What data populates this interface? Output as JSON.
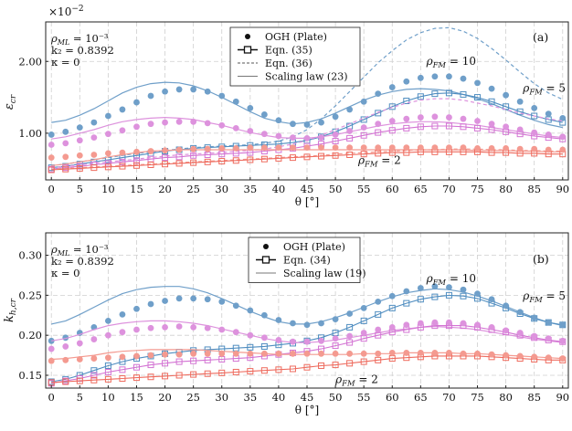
{
  "chart_data": [
    {
      "type": "scatter",
      "panel_label": "(a)",
      "exponent_label": "×10",
      "exponent_power": "−2",
      "ylabel": "ε",
      "ylabel_sub": "cr",
      "xlabel": "θ [°]",
      "xlim": [
        -1,
        91
      ],
      "ylim": [
        0.35,
        2.55
      ],
      "x_ticks": [
        0,
        5,
        10,
        15,
        20,
        25,
        30,
        35,
        40,
        45,
        50,
        55,
        60,
        65,
        70,
        75,
        80,
        85,
        90
      ],
      "y_ticks": [
        {
          "value": 1.0,
          "label": "1.00"
        },
        {
          "value": 2.0,
          "label": "2.00"
        }
      ],
      "params": [
        "ρML = 10⁻³",
        "k₂ = 0.8392",
        "κ = 0"
      ],
      "legend": [
        {
          "kind": "dot",
          "label": "OGH (Plate)"
        },
        {
          "kind": "square-line",
          "label": "Eqn. (35)"
        },
        {
          "kind": "dashed",
          "label": "Eqn. (36)"
        },
        {
          "kind": "line",
          "label": "Scaling law (23)"
        }
      ],
      "annotations": [
        {
          "text": "ρFM = 10",
          "x": 66,
          "y": 1.95
        },
        {
          "text": "ρFM = 5",
          "x": 83,
          "y": 1.58
        },
        {
          "text": "ρFM = 2",
          "x": 54,
          "y": 0.57
        }
      ],
      "markers_x": [
        0,
        2.5,
        5,
        7.5,
        10,
        12.5,
        15,
        17.5,
        20,
        22.5,
        25,
        27.5,
        30,
        32.5,
        35,
        37.5,
        40,
        42.5,
        45,
        47.5,
        50,
        52.5,
        55,
        57.5,
        60,
        62.5,
        65,
        67.5,
        70,
        72.5,
        75,
        77.5,
        80,
        82.5,
        85,
        87.5,
        90
      ],
      "series": [
        {
          "name": "ρFM = 10",
          "color": "#4f8dc0",
          "light": "#6f9fc9",
          "ogh": [
            0.98,
            1.02,
            1.08,
            1.15,
            1.24,
            1.33,
            1.43,
            1.52,
            1.58,
            1.61,
            1.61,
            1.58,
            1.52,
            1.44,
            1.35,
            1.26,
            1.18,
            1.13,
            1.12,
            1.15,
            1.23,
            1.33,
            1.44,
            1.55,
            1.64,
            1.72,
            1.77,
            1.79,
            1.79,
            1.76,
            1.7,
            1.62,
            1.53,
            1.44,
            1.35,
            1.27,
            1.21
          ],
          "eqn": [
            0.52,
            0.54,
            0.57,
            0.6,
            0.63,
            0.66,
            0.69,
            0.72,
            0.75,
            0.77,
            0.79,
            0.8,
            0.81,
            0.82,
            0.83,
            0.84,
            0.85,
            0.87,
            0.9,
            0.95,
            1.02,
            1.1,
            1.19,
            1.28,
            1.37,
            1.45,
            1.51,
            1.55,
            1.56,
            1.54,
            1.5,
            1.44,
            1.37,
            1.3,
            1.24,
            1.19,
            1.15
          ],
          "eqn36": [
            0.55,
            0.57,
            0.6,
            0.63,
            0.66,
            0.69,
            0.72,
            0.74,
            0.76,
            0.78,
            0.8,
            0.81,
            0.82,
            0.83,
            0.84,
            0.86,
            0.89,
            0.95,
            1.05,
            1.2,
            1.38,
            1.58,
            1.78,
            1.98,
            2.15,
            2.3,
            2.4,
            2.46,
            2.47,
            2.42,
            2.32,
            2.18,
            2.02,
            1.85,
            1.69,
            1.56,
            1.47
          ],
          "scaling": [
            1.15,
            1.18,
            1.25,
            1.34,
            1.45,
            1.56,
            1.64,
            1.69,
            1.71,
            1.7,
            1.66,
            1.59,
            1.5,
            1.4,
            1.3,
            1.21,
            1.16,
            1.13,
            1.15,
            1.2,
            1.28,
            1.37,
            1.46,
            1.53,
            1.58,
            1.61,
            1.62,
            1.61,
            1.59,
            1.54,
            1.48,
            1.41,
            1.33,
            1.25,
            1.18,
            1.12,
            1.08
          ]
        },
        {
          "name": "ρFM = 5",
          "color": "#d373d3",
          "light": "#dd92dd",
          "ogh": [
            0.84,
            0.86,
            0.9,
            0.94,
            0.99,
            1.04,
            1.09,
            1.13,
            1.15,
            1.16,
            1.16,
            1.14,
            1.11,
            1.07,
            1.03,
            0.99,
            0.96,
            0.94,
            0.93,
            0.94,
            0.98,
            1.03,
            1.08,
            1.13,
            1.17,
            1.2,
            1.22,
            1.23,
            1.22,
            1.2,
            1.17,
            1.13,
            1.09,
            1.05,
            1.01,
            0.98,
            0.95
          ],
          "eqn": [
            0.5,
            0.52,
            0.54,
            0.56,
            0.58,
            0.6,
            0.62,
            0.64,
            0.66,
            0.67,
            0.69,
            0.7,
            0.71,
            0.72,
            0.73,
            0.75,
            0.77,
            0.79,
            0.82,
            0.85,
            0.89,
            0.93,
            0.97,
            1.01,
            1.04,
            1.07,
            1.09,
            1.1,
            1.1,
            1.09,
            1.07,
            1.05,
            1.02,
            0.99,
            0.96,
            0.94,
            0.92
          ],
          "eqn36": [
            0.52,
            0.54,
            0.56,
            0.58,
            0.6,
            0.62,
            0.64,
            0.66,
            0.68,
            0.7,
            0.71,
            0.72,
            0.73,
            0.75,
            0.76,
            0.78,
            0.81,
            0.85,
            0.9,
            0.97,
            1.05,
            1.13,
            1.21,
            1.29,
            1.36,
            1.42,
            1.46,
            1.48,
            1.48,
            1.46,
            1.42,
            1.38,
            1.33,
            1.28,
            1.24,
            1.2,
            1.17
          ],
          "scaling": [
            0.92,
            0.95,
            1.0,
            1.05,
            1.11,
            1.16,
            1.19,
            1.21,
            1.22,
            1.21,
            1.19,
            1.15,
            1.11,
            1.06,
            1.01,
            0.97,
            0.94,
            0.93,
            0.93,
            0.95,
            0.98,
            1.02,
            1.06,
            1.1,
            1.13,
            1.15,
            1.16,
            1.16,
            1.15,
            1.13,
            1.11,
            1.08,
            1.05,
            1.02,
            0.99,
            0.96,
            0.94
          ]
        },
        {
          "name": "ρFM = 2",
          "color": "#ee6b5e",
          "light": "#f49a90",
          "ogh": [
            0.66,
            0.67,
            0.69,
            0.7,
            0.72,
            0.73,
            0.74,
            0.75,
            0.76,
            0.77,
            0.78,
            0.78,
            0.79,
            0.79,
            0.8,
            0.8,
            0.8,
            0.8,
            0.8,
            0.8,
            0.8,
            0.8,
            0.8,
            0.8,
            0.8,
            0.8,
            0.8,
            0.8,
            0.8,
            0.8,
            0.79,
            0.79,
            0.79,
            0.78,
            0.78,
            0.77,
            0.77
          ],
          "eqn": [
            0.49,
            0.5,
            0.51,
            0.52,
            0.53,
            0.54,
            0.55,
            0.56,
            0.57,
            0.58,
            0.59,
            0.6,
            0.61,
            0.62,
            0.63,
            0.64,
            0.65,
            0.66,
            0.67,
            0.68,
            0.69,
            0.7,
            0.71,
            0.72,
            0.73,
            0.73,
            0.74,
            0.74,
            0.74,
            0.74,
            0.74,
            0.73,
            0.73,
            0.72,
            0.72,
            0.71,
            0.71
          ],
          "eqn36": [
            0.5,
            0.51,
            0.52,
            0.53,
            0.54,
            0.55,
            0.56,
            0.57,
            0.58,
            0.59,
            0.6,
            0.61,
            0.62,
            0.63,
            0.64,
            0.65,
            0.66,
            0.67,
            0.68,
            0.69,
            0.71,
            0.72,
            0.73,
            0.74,
            0.75,
            0.76,
            0.77,
            0.77,
            0.78,
            0.78,
            0.78,
            0.77,
            0.77,
            0.76,
            0.76,
            0.75,
            0.75
          ],
          "scaling": [
            0.55,
            0.57,
            0.6,
            0.63,
            0.67,
            0.7,
            0.73,
            0.75,
            0.76,
            0.77,
            0.77,
            0.77,
            0.77,
            0.77,
            0.77,
            0.77,
            0.77,
            0.77,
            0.77,
            0.77,
            0.77,
            0.77,
            0.77,
            0.77,
            0.77,
            0.77,
            0.77,
            0.77,
            0.77,
            0.77,
            0.76,
            0.76,
            0.76,
            0.75,
            0.75,
            0.74,
            0.74
          ]
        }
      ]
    },
    {
      "type": "scatter",
      "panel_label": "(b)",
      "ylabel": "k",
      "ylabel_sub": "h,cr",
      "xlabel": "θ [°]",
      "xlim": [
        -1,
        91
      ],
      "ylim": [
        0.134,
        0.328
      ],
      "x_ticks": [
        0,
        5,
        10,
        15,
        20,
        25,
        30,
        35,
        40,
        45,
        50,
        55,
        60,
        65,
        70,
        75,
        80,
        85,
        90
      ],
      "y_ticks": [
        {
          "value": 0.15,
          "label": "0.15"
        },
        {
          "value": 0.2,
          "label": "0.20"
        },
        {
          "value": 0.25,
          "label": "0.25"
        },
        {
          "value": 0.3,
          "label": "0.30"
        }
      ],
      "params": [
        "ρML = 10⁻³",
        "k₂ = 0.8392",
        "κ = 0"
      ],
      "legend": [
        {
          "kind": "dot",
          "label": "OGH (Plate)"
        },
        {
          "kind": "square-line",
          "label": "Eqn. (34)"
        },
        {
          "kind": "line",
          "label": "Scaling law (19)"
        }
      ],
      "annotations": [
        {
          "text": "ρFM = 10",
          "x": 66,
          "y": 0.2665
        },
        {
          "text": "ρFM = 5",
          "x": 83,
          "y": 0.2445
        },
        {
          "text": "ρFM = 2",
          "x": 50,
          "y": 0.1405
        }
      ],
      "markers_x": [
        0,
        2.5,
        5,
        7.5,
        10,
        12.5,
        15,
        17.5,
        20,
        22.5,
        25,
        27.5,
        30,
        32.5,
        35,
        37.5,
        40,
        42.5,
        45,
        47.5,
        50,
        52.5,
        55,
        57.5,
        60,
        62.5,
        65,
        67.5,
        70,
        72.5,
        75,
        77.5,
        80,
        82.5,
        85,
        87.5,
        90
      ],
      "series": [
        {
          "name": "ρFM = 10",
          "color": "#4f8dc0",
          "light": "#6f9fc9",
          "ogh": [
            0.193,
            0.197,
            0.203,
            0.21,
            0.218,
            0.226,
            0.233,
            0.239,
            0.243,
            0.246,
            0.246,
            0.245,
            0.242,
            0.237,
            0.231,
            0.225,
            0.219,
            0.215,
            0.213,
            0.215,
            0.22,
            0.227,
            0.234,
            0.242,
            0.249,
            0.255,
            0.259,
            0.261,
            0.26,
            0.257,
            0.252,
            0.245,
            0.237,
            0.229,
            0.222,
            0.216,
            0.213
          ],
          "eqn": [
            0.142,
            0.145,
            0.15,
            0.156,
            0.162,
            0.167,
            0.171,
            0.174,
            0.177,
            0.179,
            0.181,
            0.182,
            0.183,
            0.184,
            0.185,
            0.186,
            0.188,
            0.19,
            0.193,
            0.197,
            0.203,
            0.21,
            0.218,
            0.226,
            0.234,
            0.24,
            0.245,
            0.248,
            0.25,
            0.249,
            0.246,
            0.24,
            0.234,
            0.227,
            0.221,
            0.216,
            0.213
          ],
          "scaling": [
            0.214,
            0.218,
            0.226,
            0.235,
            0.244,
            0.252,
            0.257,
            0.26,
            0.261,
            0.261,
            0.258,
            0.253,
            0.246,
            0.238,
            0.23,
            0.223,
            0.217,
            0.214,
            0.214,
            0.217,
            0.222,
            0.228,
            0.235,
            0.242,
            0.248,
            0.253,
            0.256,
            0.258,
            0.257,
            0.254,
            0.249,
            0.243,
            0.236,
            0.229,
            0.222,
            0.216,
            0.212
          ]
        },
        {
          "name": "ρFM = 5",
          "color": "#d373d3",
          "light": "#dd92dd",
          "ogh": [
            0.183,
            0.186,
            0.19,
            0.195,
            0.2,
            0.204,
            0.207,
            0.209,
            0.21,
            0.211,
            0.21,
            0.209,
            0.207,
            0.204,
            0.2,
            0.197,
            0.194,
            0.192,
            0.192,
            0.193,
            0.196,
            0.199,
            0.203,
            0.207,
            0.21,
            0.213,
            0.215,
            0.216,
            0.216,
            0.215,
            0.213,
            0.21,
            0.206,
            0.203,
            0.199,
            0.196,
            0.193
          ],
          "eqn": [
            0.14,
            0.143,
            0.146,
            0.15,
            0.154,
            0.157,
            0.16,
            0.163,
            0.165,
            0.167,
            0.168,
            0.169,
            0.17,
            0.171,
            0.172,
            0.174,
            0.176,
            0.178,
            0.18,
            0.183,
            0.187,
            0.191,
            0.196,
            0.2,
            0.204,
            0.207,
            0.21,
            0.212,
            0.212,
            0.212,
            0.21,
            0.207,
            0.204,
            0.2,
            0.197,
            0.194,
            0.192
          ],
          "scaling": [
            0.193,
            0.196,
            0.201,
            0.207,
            0.212,
            0.215,
            0.217,
            0.218,
            0.218,
            0.217,
            0.215,
            0.212,
            0.208,
            0.204,
            0.2,
            0.196,
            0.193,
            0.191,
            0.191,
            0.192,
            0.194,
            0.197,
            0.2,
            0.203,
            0.206,
            0.208,
            0.21,
            0.211,
            0.21,
            0.209,
            0.207,
            0.204,
            0.201,
            0.198,
            0.195,
            0.193,
            0.191
          ]
        },
        {
          "name": "ρFM = 2",
          "color": "#ee6b5e",
          "light": "#f49a90",
          "ogh": [
            0.168,
            0.169,
            0.17,
            0.171,
            0.172,
            0.173,
            0.174,
            0.175,
            0.176,
            0.176,
            0.177,
            0.177,
            0.177,
            0.177,
            0.177,
            0.177,
            0.177,
            0.177,
            0.177,
            0.177,
            0.177,
            0.177,
            0.177,
            0.177,
            0.178,
            0.178,
            0.178,
            0.178,
            0.178,
            0.177,
            0.177,
            0.176,
            0.175,
            0.174,
            0.173,
            0.172,
            0.171
          ],
          "eqn": [
            0.141,
            0.142,
            0.143,
            0.144,
            0.145,
            0.146,
            0.147,
            0.148,
            0.149,
            0.15,
            0.151,
            0.152,
            0.153,
            0.154,
            0.155,
            0.156,
            0.157,
            0.158,
            0.16,
            0.162,
            0.163,
            0.165,
            0.167,
            0.169,
            0.171,
            0.172,
            0.173,
            0.174,
            0.174,
            0.174,
            0.174,
            0.173,
            0.172,
            0.171,
            0.17,
            0.169,
            0.169
          ],
          "scaling": [
            0.17,
            0.171,
            0.173,
            0.175,
            0.178,
            0.18,
            0.181,
            0.182,
            0.182,
            0.182,
            0.182,
            0.181,
            0.18,
            0.179,
            0.178,
            0.177,
            0.176,
            0.176,
            0.176,
            0.176,
            0.176,
            0.176,
            0.177,
            0.177,
            0.177,
            0.178,
            0.178,
            0.178,
            0.178,
            0.177,
            0.177,
            0.176,
            0.175,
            0.174,
            0.173,
            0.172,
            0.171
          ]
        }
      ]
    }
  ]
}
